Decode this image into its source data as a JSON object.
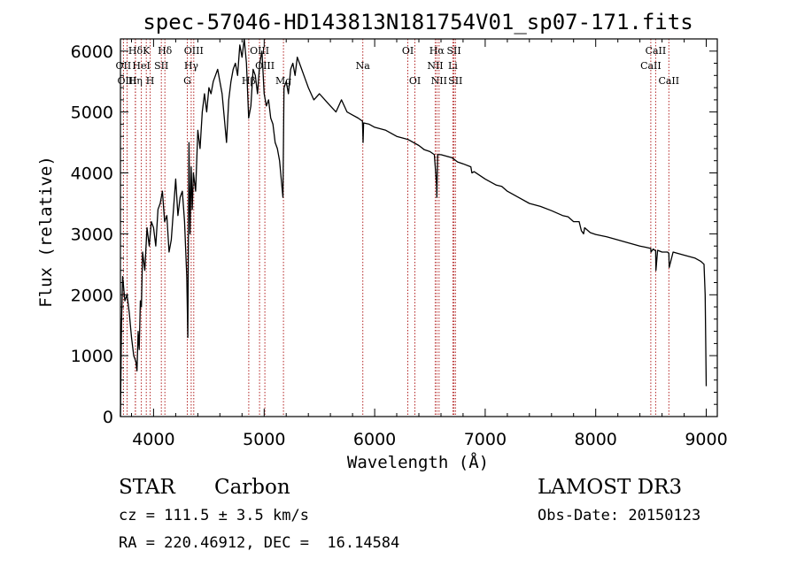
{
  "chart_data": {
    "type": "line",
    "title": "spec-57046-HD143813N181754V01_sp07-171.fits",
    "xlabel": "Wavelength (Å)",
    "ylabel": "Flux (relative)",
    "xlim": [
      3700,
      9100
    ],
    "ylim": [
      0,
      6200
    ],
    "x_ticks": [
      4000,
      5000,
      6000,
      7000,
      8000,
      9000
    ],
    "y_ticks": [
      0,
      1000,
      2000,
      3000,
      4000,
      5000,
      6000
    ],
    "grid": false,
    "line_color": "#000000",
    "marker_color": "#b22222",
    "series": [
      {
        "x": [
          3700,
          3710,
          3720,
          3740,
          3760,
          3780,
          3800,
          3820,
          3840,
          3850,
          3860,
          3870,
          3880,
          3890,
          3900,
          3920,
          3940,
          3960,
          3980,
          4000,
          4020,
          4040,
          4060,
          4080,
          4100,
          4120,
          4140,
          4160,
          4180,
          4200,
          4220,
          4240,
          4260,
          4280,
          4300,
          4310,
          4320,
          4330,
          4340,
          4350,
          4360,
          4380,
          4400,
          4420,
          4440,
          4460,
          4480,
          4500,
          4520,
          4540,
          4560,
          4580,
          4600,
          4620,
          4640,
          4660,
          4680,
          4700,
          4720,
          4740,
          4760,
          4780,
          4800,
          4820,
          4840,
          4860,
          4880,
          4900,
          4920,
          4940,
          4960,
          4980,
          5000,
          5020,
          5040,
          5060,
          5080,
          5100,
          5120,
          5140,
          5160,
          5170,
          5180,
          5200,
          5220,
          5240,
          5260,
          5280,
          5300,
          5320,
          5340,
          5360,
          5380,
          5400,
          5450,
          5500,
          5550,
          5600,
          5650,
          5700,
          5750,
          5800,
          5850,
          5890,
          5895,
          5900,
          5950,
          6000,
          6100,
          6200,
          6300,
          6400,
          6450,
          6500,
          6540,
          6560,
          6563,
          6570,
          6600,
          6700,
          6750,
          6800,
          6870,
          6880,
          6900,
          7000,
          7100,
          7150,
          7200,
          7300,
          7400,
          7500,
          7600,
          7700,
          7750,
          7800,
          7850,
          7870,
          7890,
          7900,
          7950,
          8000,
          8100,
          8200,
          8300,
          8400,
          8450,
          8498,
          8500,
          8520,
          8542,
          8545,
          8560,
          8600,
          8650,
          8662,
          8665,
          8700,
          8800,
          8900,
          8950,
          8980,
          8990,
          9000
        ],
        "y": [
          0,
          1500,
          2300,
          1900,
          2000,
          1700,
          1300,
          1000,
          900,
          750,
          1400,
          1100,
          1900,
          1800,
          2700,
          2400,
          3100,
          2800,
          3200,
          3100,
          2800,
          3400,
          3500,
          3700,
          3200,
          3300,
          2700,
          2900,
          3400,
          3900,
          3300,
          3600,
          3700,
          3200,
          2300,
          1300,
          4500,
          3000,
          4100,
          3400,
          4000,
          3700,
          4700,
          4400,
          5000,
          5300,
          5000,
          5400,
          5300,
          5500,
          5600,
          5700,
          5500,
          5300,
          4900,
          4500,
          5200,
          5500,
          5700,
          5800,
          5600,
          6100,
          5900,
          6200,
          5800,
          4900,
          5100,
          5700,
          5600,
          5300,
          5800,
          6000,
          5300,
          5100,
          5200,
          4900,
          4800,
          4500,
          4400,
          4200,
          3800,
          3600,
          5400,
          5500,
          5300,
          5700,
          5800,
          5600,
          5900,
          5800,
          5700,
          5600,
          5500,
          5400,
          5200,
          5300,
          5200,
          5100,
          5000,
          5200,
          5000,
          4950,
          4900,
          4850,
          4500,
          4820,
          4800,
          4750,
          4700,
          4600,
          4550,
          4450,
          4380,
          4350,
          4300,
          3800,
          3600,
          4300,
          4300,
          4250,
          4180,
          4150,
          4100,
          4000,
          4020,
          3900,
          3800,
          3780,
          3700,
          3600,
          3500,
          3450,
          3380,
          3300,
          3280,
          3200,
          3200,
          3050,
          3000,
          3100,
          3020,
          2990,
          2950,
          2900,
          2850,
          2800,
          2780,
          2760,
          2700,
          2750,
          2720,
          2400,
          2730,
          2700,
          2700,
          2680,
          2450,
          2700,
          2650,
          2600,
          2550,
          2500,
          2000,
          500
        ]
      }
    ],
    "lines": [
      {
        "name": "Hδ",
        "x": 3836,
        "row": 0
      },
      {
        "name": "OII",
        "x": 3727,
        "row": 1
      },
      {
        "name": "OIII",
        "x": 3760,
        "row": 2
      },
      {
        "name": "HeI",
        "x": 3889,
        "row": 1
      },
      {
        "name": "Hη",
        "x": 3835,
        "row": 2
      },
      {
        "name": "K",
        "x": 3934,
        "row": 0
      },
      {
        "name": "SII",
        "x": 4070,
        "row": 1
      },
      {
        "name": "H",
        "x": 3969,
        "row": 2
      },
      {
        "name": "Hδ",
        "x": 4102,
        "row": 0
      },
      {
        "name": "OIII",
        "x": 4363,
        "row": 0
      },
      {
        "name": "Hγ",
        "x": 4340,
        "row": 1
      },
      {
        "name": "G",
        "x": 4305,
        "row": 2
      },
      {
        "name": "Hβ",
        "x": 4861,
        "row": 2
      },
      {
        "name": "OIII",
        "x": 4959,
        "row": 0
      },
      {
        "name": "OIII",
        "x": 5007,
        "row": 1
      },
      {
        "name": "Mg",
        "x": 5175,
        "row": 2
      },
      {
        "name": "Na",
        "x": 5893,
        "row": 1
      },
      {
        "name": "OI",
        "x": 6300,
        "row": 0
      },
      {
        "name": "OI",
        "x": 6364,
        "row": 2
      },
      {
        "name": "Hα",
        "x": 6563,
        "row": 0
      },
      {
        "name": "NII",
        "x": 6548,
        "row": 1
      },
      {
        "name": "NII",
        "x": 6583,
        "row": 2
      },
      {
        "name": "SII",
        "x": 6717,
        "row": 0
      },
      {
        "name": "Li",
        "x": 6708,
        "row": 1
      },
      {
        "name": "SII",
        "x": 6731,
        "row": 2
      },
      {
        "name": "CaII",
        "x": 8498,
        "row": 1
      },
      {
        "name": "CaII",
        "x": 8542,
        "row": 0
      },
      {
        "name": "CaII",
        "x": 8662,
        "row": 2
      }
    ]
  },
  "info": {
    "object_type": "STAR",
    "subclass": "Carbon",
    "survey": "LAMOST DR3",
    "redshift": "cz = 111.5 ± 3.5 km/s",
    "obs_date": "Obs-Date: 20150123",
    "coords": "RA = 220.46912, DEC =  16.14584"
  }
}
